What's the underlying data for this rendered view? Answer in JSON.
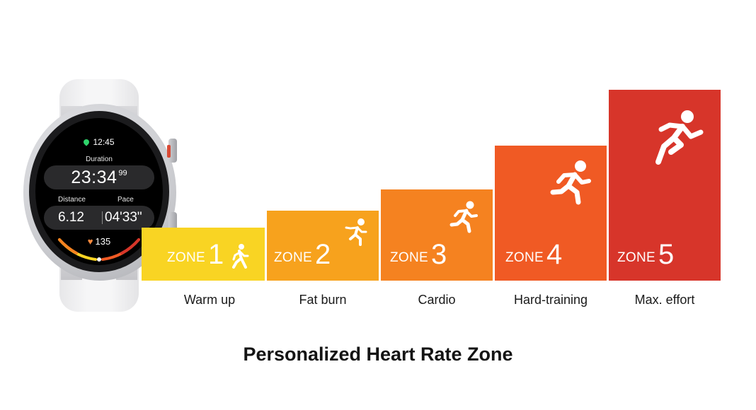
{
  "watch": {
    "time": "12:45",
    "duration_label": "Duration",
    "duration_value": "23:34",
    "duration_hundredths": "99",
    "distance_label": "Distance",
    "pace_label": "Pace",
    "distance_value": "6.12",
    "pace_value": "04'33\"",
    "heart_rate": "135",
    "icons": [
      "location-pin-icon",
      "heart-icon"
    ]
  },
  "zones": [
    {
      "word": "ZONE",
      "number": "1",
      "label": "Warm up",
      "color": "#f9d423",
      "icon": "walking-person-icon"
    },
    {
      "word": "ZONE",
      "number": "2",
      "label": "Fat burn",
      "color": "#f7a21d",
      "icon": "jogging-person-icon"
    },
    {
      "word": "ZONE",
      "number": "3",
      "label": "Cardio",
      "color": "#f58220",
      "icon": "running-person-icon"
    },
    {
      "word": "ZONE",
      "number": "4",
      "label": "Hard-training",
      "color": "#f05a24",
      "icon": "running-fast-person-icon"
    },
    {
      "word": "ZONE",
      "number": "5",
      "label": "Max. effort",
      "color": "#d7352a",
      "icon": "sprinting-person-icon"
    }
  ],
  "title": "Personalized Heart Rate Zone"
}
